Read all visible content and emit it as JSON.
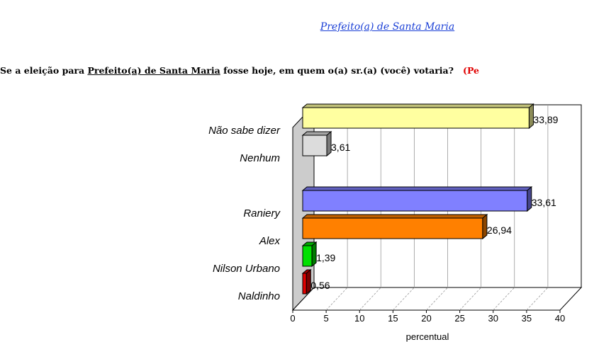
{
  "heading": "Prefeito(a) de Santa Maria",
  "question": {
    "before": "Se a eleição para ",
    "underlined": "Prefeito(a) de Santa Maria",
    "after": " fosse hoje, em quem o(a) sr.(a) (você) votaria?",
    "trailing": "(Pe"
  },
  "chart_data": {
    "type": "bar",
    "orientation": "horizontal",
    "three_d": true,
    "categories": [
      "Não sabe dizer",
      "Nenhum",
      "Raniery",
      "Alex",
      "Nilson Urbano",
      "Naldinho"
    ],
    "values": [
      33.89,
      3.61,
      33.61,
      26.94,
      1.39,
      0.56
    ],
    "value_labels": [
      "33,89",
      "3,61",
      "33,61",
      "26,94",
      "1,39",
      "0,56"
    ],
    "colors": [
      "#ffffa0",
      "#dcdcdc",
      "#8080ff",
      "#ff8000",
      "#00e000",
      "#e00000"
    ],
    "xlabel": "percentual",
    "xlim": [
      0,
      40
    ],
    "xticks": [
      0,
      5,
      10,
      15,
      20,
      25,
      30,
      35,
      40
    ],
    "grid": true,
    "legend": "none"
  }
}
